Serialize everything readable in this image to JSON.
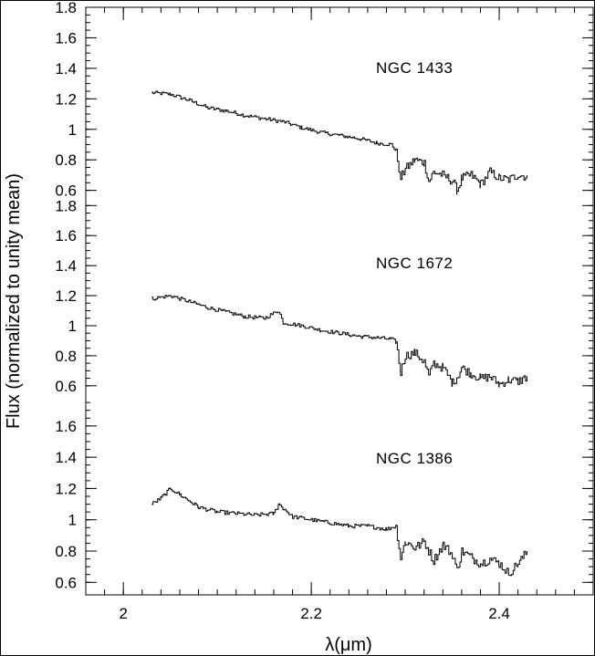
{
  "chart_data": {
    "type": "line",
    "xlabel": "λ(μm)",
    "ylabel": "Flux (normalized to unity mean)",
    "xlim": [
      1.96,
      2.5
    ],
    "x_ticks": [
      "2",
      "2.2",
      "2.4"
    ],
    "y_ticks": [
      "0.6",
      "0.8",
      "1",
      "1.2",
      "1.4",
      "1.6",
      "1.8"
    ],
    "grid": false,
    "panels": [
      {
        "name": "NGC 1433",
        "ylim": [
          0.52,
          1.8
        ],
        "x": [
          2.03,
          2.05,
          2.07,
          2.09,
          2.11,
          2.13,
          2.15,
          2.17,
          2.19,
          2.21,
          2.23,
          2.25,
          2.27,
          2.285,
          2.29,
          2.295,
          2.3,
          2.31,
          2.32,
          2.325,
          2.33,
          2.34,
          2.35,
          2.355,
          2.36,
          2.37,
          2.38,
          2.39,
          2.4,
          2.41,
          2.42,
          2.43
        ],
        "y": [
          1.24,
          1.23,
          1.19,
          1.14,
          1.12,
          1.09,
          1.07,
          1.05,
          1.01,
          0.98,
          0.96,
          0.94,
          0.91,
          0.9,
          0.86,
          0.68,
          0.74,
          0.8,
          0.78,
          0.66,
          0.72,
          0.7,
          0.66,
          0.6,
          0.68,
          0.7,
          0.64,
          0.72,
          0.68,
          0.67,
          0.7,
          0.69
        ]
      },
      {
        "name": "NGC 1672",
        "ylim": [
          0.52,
          1.82
        ],
        "x": [
          2.03,
          2.05,
          2.07,
          2.09,
          2.11,
          2.13,
          2.15,
          2.165,
          2.17,
          2.19,
          2.21,
          2.23,
          2.25,
          2.27,
          2.285,
          2.29,
          2.295,
          2.3,
          2.31,
          2.32,
          2.325,
          2.33,
          2.34,
          2.35,
          2.355,
          2.36,
          2.37,
          2.38,
          2.39,
          2.4,
          2.41,
          2.42,
          2.43
        ],
        "y": [
          1.18,
          1.2,
          1.16,
          1.12,
          1.09,
          1.06,
          1.05,
          1.1,
          1.02,
          1.0,
          0.97,
          0.95,
          0.93,
          0.92,
          0.91,
          0.89,
          0.69,
          0.8,
          0.82,
          0.76,
          0.66,
          0.75,
          0.72,
          0.62,
          0.66,
          0.72,
          0.68,
          0.65,
          0.66,
          0.61,
          0.64,
          0.63,
          0.66
        ]
      },
      {
        "name": "NGC 1386",
        "ylim": [
          0.52,
          1.78
        ],
        "x": [
          2.03,
          2.04,
          2.05,
          2.06,
          2.08,
          2.1,
          2.12,
          2.14,
          2.16,
          2.165,
          2.18,
          2.2,
          2.22,
          2.24,
          2.26,
          2.28,
          2.29,
          2.295,
          2.3,
          2.31,
          2.32,
          2.33,
          2.34,
          2.35,
          2.355,
          2.36,
          2.37,
          2.38,
          2.39,
          2.4,
          2.41,
          2.42,
          2.43
        ],
        "y": [
          1.1,
          1.14,
          1.2,
          1.16,
          1.08,
          1.05,
          1.04,
          1.03,
          1.04,
          1.1,
          1.02,
          1.0,
          0.98,
          0.96,
          0.96,
          0.94,
          0.96,
          0.76,
          0.86,
          0.82,
          0.86,
          0.74,
          0.84,
          0.78,
          0.68,
          0.8,
          0.76,
          0.72,
          0.75,
          0.72,
          0.66,
          0.72,
          0.8
        ]
      }
    ]
  }
}
